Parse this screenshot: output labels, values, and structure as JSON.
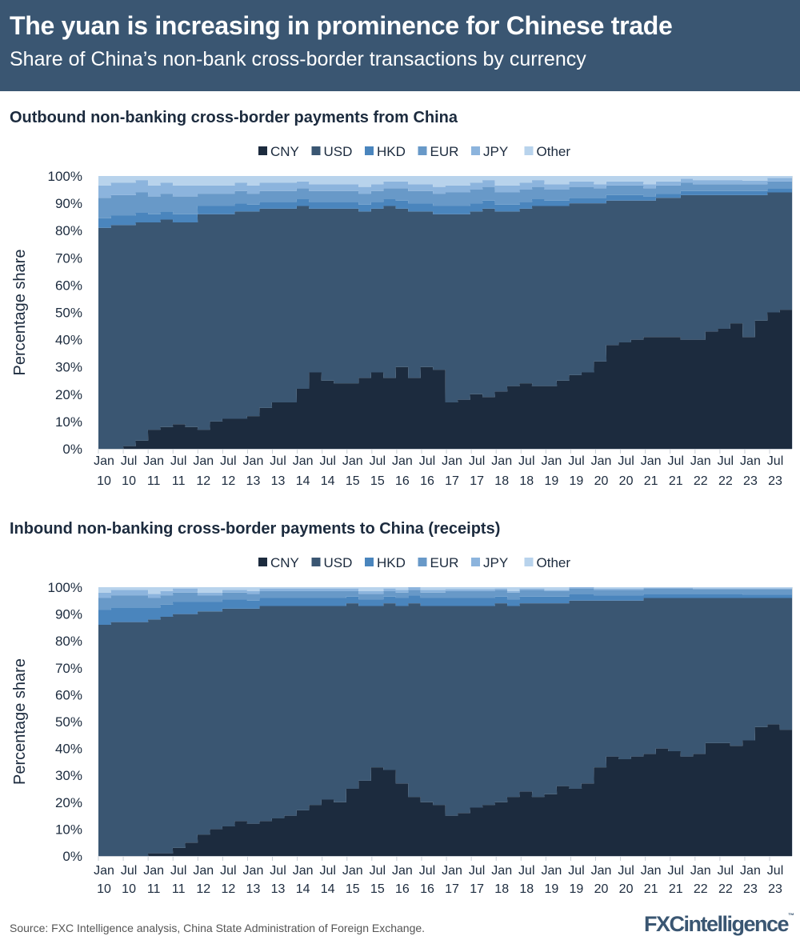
{
  "header": {
    "title": "The yuan is increasing in prominence for Chinese trade",
    "subtitle": "Share of China’s non-bank cross-border transactions by currency"
  },
  "colors": {
    "header_bg": "#3a5672",
    "CNY": "#1c2b3e",
    "USD": "#3a5672",
    "HKD": "#4a85bd",
    "EUR": "#6899c8",
    "JPY": "#8cb4dd",
    "Other": "#b8d3ec"
  },
  "footer": {
    "source": "Source: FXC Intelligence analysis, China State Administration of Foreign Exchange.",
    "logo": "FXCintelligence"
  },
  "chart_data": [
    {
      "type": "area",
      "stacked": true,
      "title": "Outbound non-banking cross-border payments from China",
      "ylabel": "Percentage share",
      "ylim": [
        0,
        100
      ],
      "y_ticks": [
        "0%",
        "10%",
        "20%",
        "30%",
        "40%",
        "50%",
        "60%",
        "70%",
        "80%",
        "90%",
        "100%"
      ],
      "x_range": [
        "2010-01",
        "2023-12"
      ],
      "x_resolution": "quarterly (approximate readings)",
      "x_tick_months": [
        "Jan",
        "Jul",
        "Jan",
        "Jul",
        "Jan",
        "Jul",
        "Jan",
        "Jul",
        "Jan",
        "Jul",
        "Jan",
        "Jul",
        "Jan",
        "Jul",
        "Jan",
        "Jul",
        "Jan",
        "Jul",
        "Jan",
        "Jul",
        "Jan",
        "Jul",
        "Jan",
        "Jul",
        "Jan",
        "Jul",
        "Jan",
        "Jul"
      ],
      "x_tick_years": [
        "10",
        "10",
        "11",
        "11",
        "12",
        "12",
        "13",
        "13",
        "14",
        "14",
        "15",
        "15",
        "16",
        "16",
        "17",
        "17",
        "18",
        "18",
        "19",
        "19",
        "20",
        "20",
        "21",
        "21",
        "22",
        "22",
        "23",
        "23"
      ],
      "legend": "top-center",
      "grid": false,
      "series": [
        {
          "name": "CNY",
          "values": [
            0,
            0,
            1,
            3,
            7,
            8,
            9,
            8,
            7,
            10,
            11,
            11,
            12,
            15,
            17,
            17,
            22,
            28,
            25,
            24,
            24,
            26,
            28,
            26,
            30,
            26,
            30,
            29,
            17,
            18,
            20,
            19,
            21,
            23,
            24,
            23,
            23,
            25,
            27,
            28,
            32,
            38,
            39,
            40,
            41,
            41,
            41,
            40,
            40,
            43,
            44,
            46,
            41,
            47,
            50,
            51
          ]
        },
        {
          "name": "USD",
          "values": [
            81,
            82,
            81,
            80,
            76,
            76,
            74,
            75,
            79,
            76,
            75,
            76,
            75,
            73,
            71,
            71,
            67,
            60,
            63,
            64,
            64,
            61,
            60,
            63,
            58,
            61,
            57,
            57,
            69,
            68,
            67,
            69,
            66,
            64,
            64,
            66,
            66,
            64,
            63,
            62,
            58,
            53,
            52,
            51,
            50,
            51,
            51,
            53,
            53,
            50,
            49,
            47,
            52,
            46,
            44,
            43
          ]
        },
        {
          "name": "HKD",
          "values": [
            3.5,
            3.5,
            3.5,
            3.5,
            3,
            3,
            3,
            3,
            3,
            3,
            3,
            3,
            2.5,
            2.5,
            2.5,
            2.5,
            2.5,
            2.5,
            2.5,
            2.5,
            2.5,
            2.5,
            2.5,
            2.5,
            3,
            3,
            3,
            3,
            3,
            3,
            3,
            3,
            2.5,
            2.5,
            2.5,
            2.5,
            2,
            2,
            2,
            2,
            2,
            2,
            2,
            2,
            1.5,
            1.5,
            1.5,
            1.5,
            1.5,
            1.5,
            1.5,
            1.5,
            1.5,
            1.5,
            1.5,
            1.5
          ]
        },
        {
          "name": "EUR",
          "values": [
            7.5,
            7.5,
            7.5,
            7.5,
            6.5,
            6.5,
            6.5,
            6.5,
            4.5,
            4.5,
            4.5,
            4.5,
            4,
            4,
            4,
            4,
            4,
            4,
            4,
            4,
            4,
            4,
            4,
            4,
            4.5,
            4.5,
            4.5,
            4.5,
            5,
            5,
            5,
            5,
            4.5,
            4.5,
            4.5,
            4.5,
            4,
            4,
            4,
            4,
            3.5,
            3.5,
            3.5,
            3.5,
            3,
            3,
            3,
            3,
            2.5,
            2.5,
            2.5,
            2.5,
            2.5,
            2.5,
            2.5,
            2.5
          ]
        },
        {
          "name": "JPY",
          "values": [
            4.5,
            4.5,
            4.5,
            4.5,
            4,
            4,
            4,
            4,
            3,
            3,
            3,
            3,
            3,
            3,
            3,
            3,
            2.5,
            2.5,
            2.5,
            2.5,
            2.5,
            2.5,
            2.5,
            2.5,
            2.5,
            2.5,
            2.5,
            2.5,
            2.5,
            2.5,
            2.5,
            2.5,
            2.5,
            2.5,
            2.5,
            2.5,
            2,
            2,
            2,
            2,
            1.5,
            1.5,
            1.5,
            1.5,
            1.5,
            1.5,
            1.5,
            1.5,
            1.5,
            1.5,
            1.5,
            1.5,
            1.3,
            1.3,
            1.3,
            1.3
          ]
        },
        {
          "name": "Other",
          "values": [
            3.5,
            2.5,
            2.5,
            1.5,
            3.5,
            2.5,
            3.5,
            3.5,
            3.5,
            3.5,
            3.5,
            2.5,
            3.5,
            2.5,
            2.5,
            2.5,
            2,
            3,
            3,
            3,
            3,
            4,
            3,
            2,
            2,
            3,
            3,
            4,
            3.5,
            3.5,
            2.5,
            1.5,
            3.5,
            3.5,
            2.5,
            1.5,
            3,
            3,
            2,
            2,
            3,
            2,
            2,
            2,
            3,
            2,
            2,
            1,
            1.5,
            1.5,
            1.5,
            1.5,
            1.7,
            1.7,
            0.7,
            0.7
          ]
        }
      ]
    },
    {
      "type": "area",
      "stacked": true,
      "title": "Inbound non-banking cross-border payments to China (receipts)",
      "ylabel": "Percentage share",
      "ylim": [
        0,
        100
      ],
      "y_ticks": [
        "0%",
        "10%",
        "20%",
        "30%",
        "40%",
        "50%",
        "60%",
        "70%",
        "80%",
        "90%",
        "100%"
      ],
      "x_range": [
        "2010-01",
        "2023-12"
      ],
      "x_resolution": "quarterly (approximate readings)",
      "x_tick_months": [
        "Jan",
        "Jul",
        "Jan",
        "Jul",
        "Jan",
        "Jul",
        "Jan",
        "Jul",
        "Jan",
        "Jul",
        "Jan",
        "Jul",
        "Jan",
        "Jul",
        "Jan",
        "Jul",
        "Jan",
        "Jul",
        "Jan",
        "Jul",
        "Jan",
        "Jul",
        "Jan",
        "Jul",
        "Jan",
        "Jul",
        "Jan",
        "Jul"
      ],
      "x_tick_years": [
        "10",
        "10",
        "11",
        "11",
        "12",
        "12",
        "13",
        "13",
        "14",
        "14",
        "15",
        "15",
        "16",
        "16",
        "17",
        "17",
        "18",
        "18",
        "19",
        "19",
        "20",
        "20",
        "21",
        "21",
        "22",
        "22",
        "23",
        "23"
      ],
      "legend": "top-center",
      "grid": false,
      "series": [
        {
          "name": "CNY",
          "values": [
            0,
            0,
            0,
            0,
            1,
            1,
            3,
            5,
            8,
            10,
            11,
            13,
            12,
            13,
            14,
            15,
            17,
            19,
            21,
            20,
            25,
            28,
            33,
            32,
            27,
            22,
            20,
            19,
            15,
            16,
            18,
            19,
            20,
            22,
            24,
            22,
            23,
            26,
            25,
            27,
            33,
            37,
            36,
            37,
            38,
            40,
            39,
            37,
            38,
            42,
            42,
            41,
            43,
            48,
            49,
            47
          ]
        },
        {
          "name": "USD",
          "values": [
            86,
            87,
            87,
            87,
            87,
            88,
            87,
            85,
            83,
            81,
            81,
            79,
            80,
            80,
            79,
            78,
            76,
            74,
            72,
            73,
            69,
            65,
            60,
            62,
            66,
            72,
            73,
            74,
            78,
            77,
            75,
            74,
            74,
            71,
            70,
            72,
            71,
            68,
            70,
            68,
            62,
            58,
            59,
            58,
            58,
            56,
            57,
            59,
            58,
            54,
            54,
            55,
            53,
            48,
            47,
            49
          ]
        },
        {
          "name": "HKD",
          "values": [
            5.5,
            5.5,
            5.5,
            5.5,
            4.5,
            4.5,
            4.5,
            4.5,
            3.5,
            3.5,
            3.5,
            3.5,
            3,
            3,
            3,
            3,
            3,
            3,
            3,
            3,
            2.5,
            2.5,
            2.5,
            2.5,
            3,
            3,
            3,
            3,
            3,
            3,
            3,
            3,
            2.5,
            2.5,
            2.5,
            2.5,
            2.5,
            2.5,
            2.5,
            2.5,
            2,
            2,
            2,
            2,
            1.5,
            1.5,
            1.5,
            1.5,
            1.5,
            1.5,
            1.5,
            1.5,
            1.3,
            1.3,
            1.3,
            1.3
          ]
        },
        {
          "name": "EUR",
          "values": [
            4.5,
            4.5,
            4.5,
            4.5,
            3.5,
            3.5,
            3.5,
            3.5,
            2.5,
            2.5,
            2.5,
            2.5,
            2.5,
            2.5,
            2.5,
            2.5,
            2.5,
            2.5,
            2.5,
            2.5,
            2,
            2,
            2,
            2,
            2,
            2,
            2,
            2,
            2.5,
            2.5,
            2.5,
            2.5,
            2.5,
            2.5,
            2.5,
            2.5,
            2,
            2,
            2,
            2,
            2,
            2,
            2,
            2,
            2,
            2,
            2,
            2,
            1.8,
            1.8,
            1.8,
            1.8,
            2,
            2,
            2,
            2
          ]
        },
        {
          "name": "JPY",
          "values": [
            2,
            2,
            2,
            2,
            1.5,
            1.5,
            1.5,
            1.5,
            1,
            1,
            1,
            1,
            1,
            1,
            1,
            1,
            1,
            1,
            1,
            1,
            1,
            1,
            1,
            1,
            1,
            1,
            1,
            1,
            0.8,
            0.8,
            0.8,
            0.8,
            0.5,
            0.5,
            0.5,
            0.5,
            0.5,
            0.5,
            0.5,
            0.5,
            0.5,
            0.5,
            0.5,
            0.5,
            0.3,
            0.3,
            0.3,
            0.3,
            0.3,
            0.3,
            0.3,
            0.3,
            0.3,
            0.3,
            0.3,
            0.3
          ]
        },
        {
          "name": "Other",
          "values": [
            2,
            1,
            1,
            1,
            2.5,
            1.5,
            0.5,
            0.5,
            2,
            2,
            1,
            1,
            1.5,
            0.5,
            0.5,
            0.5,
            0.5,
            0.5,
            0.5,
            0.5,
            0.5,
            1.5,
            1.5,
            0.5,
            1,
            0,
            1,
            1,
            0.7,
            0.7,
            0.7,
            0.7,
            0.5,
            1.5,
            0.5,
            0.5,
            1,
            1,
            0,
            0,
            0.5,
            0.5,
            0.5,
            0.5,
            0.2,
            0.2,
            0.2,
            0.2,
            0.4,
            0.4,
            0.4,
            0.4,
            0.4,
            0.4,
            0.4,
            0.4
          ]
        }
      ]
    }
  ]
}
